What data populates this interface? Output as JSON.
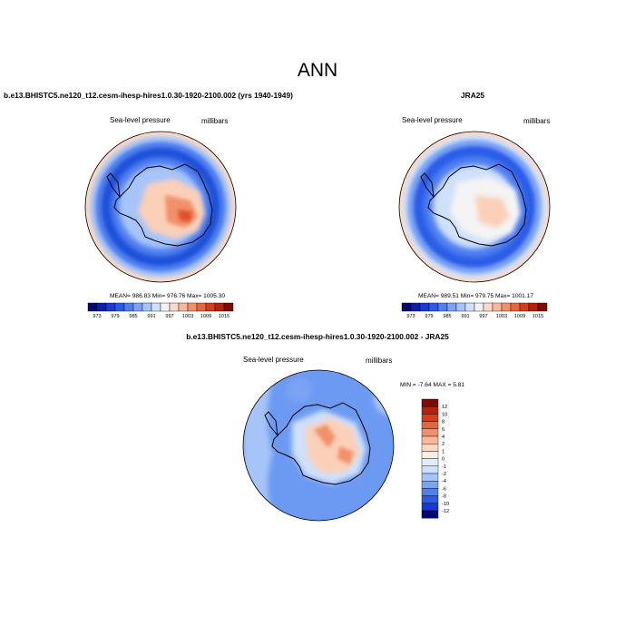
{
  "title": "ANN",
  "panels": [
    {
      "case": "b.e13.BHISTC5.ne120_t12.cesm-ihesp-hires1.0.30-1920-2100.002 (yrs 1940-1949)",
      "left_text": "Sea-level pressure",
      "right_text": "millibars",
      "stats": "MEAN= 986.83  Min= 976.76  Max= 1005.30"
    },
    {
      "case": "JRA25",
      "left_text": "Sea-level pressure",
      "right_text": "millibars",
      "stats": "MEAN= 989.51  Min= 979.75  Max= 1001.17"
    },
    {
      "case": "b.e13.BHISTC5.ne120_t12.cesm-ihesp-hires1.0.30-1920-2100.002 - JRA25",
      "left_text": "Sea-level pressure",
      "right_text": "millibars",
      "stats": "MIN =  -7.64 MAX =   5.81"
    }
  ],
  "abs_colorbar": {
    "labels": [
      "973",
      "979",
      "985",
      "991",
      "997",
      "1003",
      "1009",
      "1015"
    ],
    "colors": [
      "#04076e",
      "#0c1dab",
      "#1638d6",
      "#2a5be8",
      "#4f7ff0",
      "#7aa3f4",
      "#a6c4f8",
      "#cfe0fa",
      "#f2f2f2",
      "#fbd9c6",
      "#f8b89a",
      "#f2906b",
      "#e8663f",
      "#d63c1c",
      "#b8200c",
      "#7f0a03"
    ]
  },
  "diff_colorbar": {
    "labels": [
      "12",
      "10",
      "8",
      "6",
      "4",
      "2",
      "1",
      "0",
      "-1",
      "-2",
      "-4",
      "-6",
      "-8",
      "-10",
      "-12"
    ],
    "colors": [
      "#7f0a03",
      "#b8200c",
      "#d63c1c",
      "#e8663f",
      "#f2906b",
      "#f8b89a",
      "#fbd9c6",
      "#fdeee6",
      "#e3ecfb",
      "#cfe0fa",
      "#a6c4f8",
      "#7aa3f4",
      "#4f7ff0",
      "#2a5be8",
      "#1638d6",
      "#04076e"
    ]
  },
  "map_colors": {
    "deep_blue": "#1f4fd9",
    "mid_blue": "#4f7ff0",
    "light_blue": "#a6c4f8",
    "pale_blue": "#cfe0fa",
    "white": "#f4f4f4",
    "peach": "#fbd0b8",
    "salmon": "#f2906b",
    "red": "#e0502c",
    "diff_blue": "#6c9af2"
  }
}
